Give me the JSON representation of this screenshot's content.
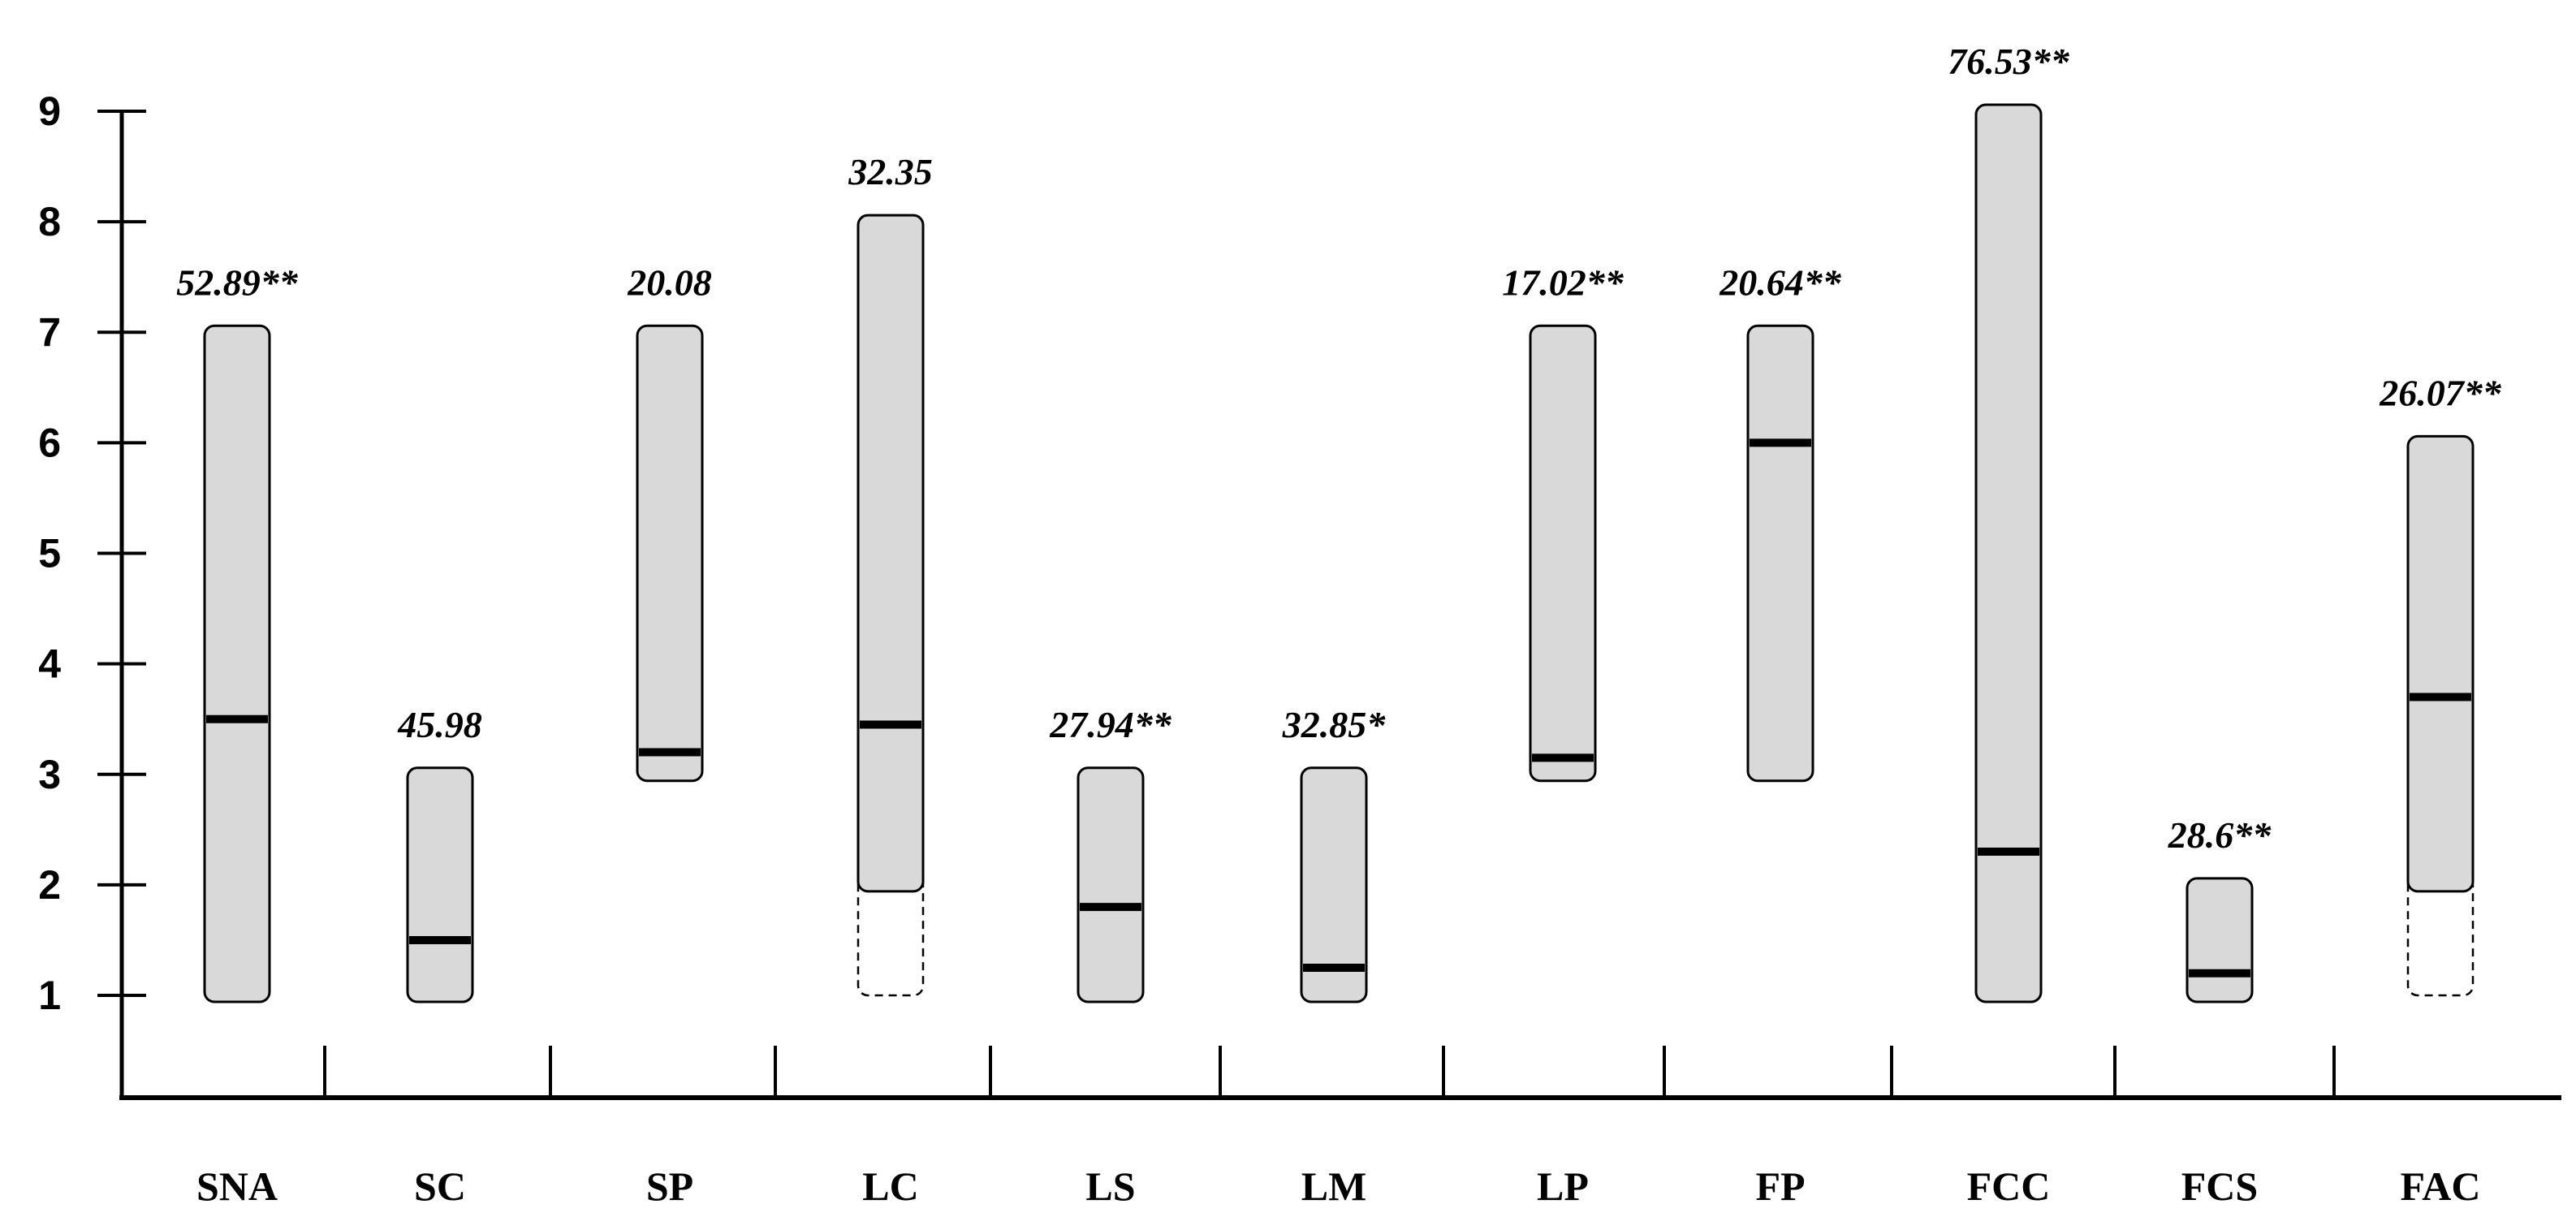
{
  "chart_data": {
    "type": "range-bar",
    "title": "",
    "xlabel": "",
    "ylabel": "",
    "ylim": [
      1,
      9
    ],
    "yticks": [
      "1",
      "2",
      "3",
      "4",
      "5",
      "6",
      "7",
      "8",
      "9"
    ],
    "grid": false,
    "legend": "none",
    "colors": {
      "bar_fill": "#d9d9d9",
      "bar_stroke": "#000000",
      "median_line": "#000000"
    },
    "categories": [
      "SNA",
      "SC",
      "SP",
      "LC",
      "LS",
      "LM",
      "LP",
      "FP",
      "FCC",
      "FCS",
      "FAC"
    ],
    "min": [
      1,
      1,
      3,
      2,
      1,
      1,
      3,
      3,
      1,
      1,
      2
    ],
    "max": [
      7,
      3,
      7,
      8,
      3,
      3,
      7,
      7,
      9,
      2,
      6
    ],
    "median": [
      3.5,
      1.5,
      3.2,
      3.45,
      1.8,
      1.25,
      3.15,
      6.0,
      2.3,
      1.2,
      3.7
    ],
    "dashed_min": [
      null,
      null,
      null,
      1,
      null,
      null,
      null,
      null,
      null,
      null,
      1
    ],
    "cv_labels": [
      "52.89**",
      "45.98",
      "20.08",
      "32.35",
      "27.94**",
      "32.85*",
      "17.02**",
      "20.64**",
      "76.53**",
      "28.6**",
      "26.07**"
    ]
  }
}
